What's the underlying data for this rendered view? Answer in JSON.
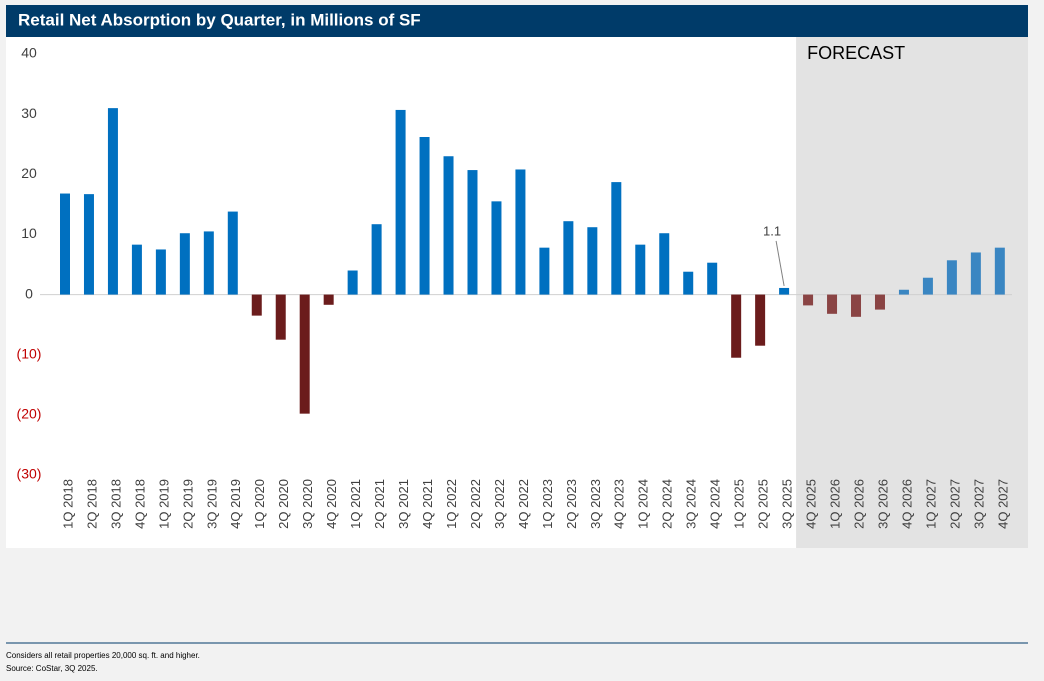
{
  "chart_data": {
    "type": "bar",
    "title": "Retail Net Absorption by Quarter, in Millions of SF",
    "categories": [
      "1Q 2018",
      "2Q 2018",
      "3Q 2018",
      "4Q 2018",
      "1Q 2019",
      "2Q 2019",
      "3Q 2019",
      "4Q 2019",
      "1Q 2020",
      "2Q 2020",
      "3Q 2020",
      "4Q 2020",
      "1Q 2021",
      "2Q 2021",
      "3Q 2021",
      "4Q 2021",
      "1Q 2022",
      "2Q 2022",
      "3Q 2022",
      "4Q 2022",
      "1Q 2023",
      "2Q 2023",
      "3Q 2023",
      "4Q 2023",
      "1Q 2024",
      "2Q 2024",
      "3Q 2024",
      "4Q 2024",
      "1Q 2025",
      "2Q 2025",
      "3Q 2025",
      "4Q 2025",
      "1Q 2026",
      "2Q 2026",
      "3Q 2026",
      "4Q 2026",
      "1Q 2027",
      "2Q 2027",
      "3Q 2027",
      "4Q 2027"
    ],
    "values": [
      16.8,
      16.7,
      31,
      8.3,
      7.5,
      10.2,
      10.5,
      13.8,
      -3.5,
      -7.5,
      -19.8,
      -1.7,
      4.0,
      11.7,
      30.7,
      26.2,
      23.0,
      20.7,
      15.5,
      20.8,
      7.8,
      12.2,
      11.2,
      18.7,
      8.3,
      10.2,
      3.8,
      5.3,
      -10.5,
      -8.5,
      1.1,
      -1.8,
      -3.2,
      -3.7,
      -2.5,
      0.8,
      2.8,
      5.7,
      7.0,
      7.8
    ],
    "value_labels": [
      null,
      null,
      null,
      null,
      null,
      null,
      null,
      null,
      null,
      null,
      null,
      null,
      null,
      null,
      null,
      null,
      null,
      null,
      null,
      null,
      null,
      null,
      null,
      null,
      null,
      null,
      null,
      null,
      null,
      null,
      "1.1",
      null,
      null,
      null,
      null,
      null,
      null,
      null,
      null,
      null
    ],
    "colors": {
      "positive": "#0070c0",
      "negative": "#6b1c1c",
      "forecast_positive": "#3a86c2",
      "forecast_negative": "#8a4444"
    },
    "forecast": {
      "label": "FORECAST",
      "from": "4Q 2025"
    },
    "ylim": [
      -30,
      40
    ],
    "yticks": [
      {
        "value": -30,
        "label": "(30)"
      },
      {
        "value": -20,
        "label": "(20)"
      },
      {
        "value": -10,
        "label": "(10)"
      },
      0,
      10,
      20,
      30,
      40
    ],
    "negative_tick_color": "#c00000",
    "footnotes": [
      "Considers all retail properties 20,000 sq. ft. and higher.",
      "Source: CoStar, 3Q 2025."
    ]
  }
}
